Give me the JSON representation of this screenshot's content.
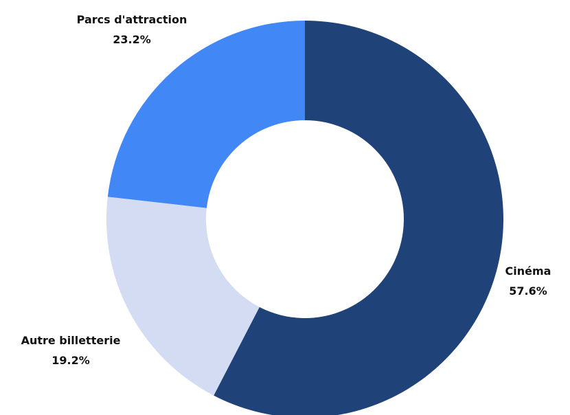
{
  "chart_data": {
    "type": "pie",
    "donut": true,
    "categories": [
      "Cinéma",
      "Autre billetterie",
      "Parcs d'attraction"
    ],
    "values": [
      57.6,
      19.2,
      23.2
    ],
    "value_labels": [
      "57.6%",
      "19.2%",
      "23.2%"
    ],
    "colors": [
      "#1f4378",
      "#d3dcf2",
      "#4187f5"
    ],
    "title": ""
  }
}
